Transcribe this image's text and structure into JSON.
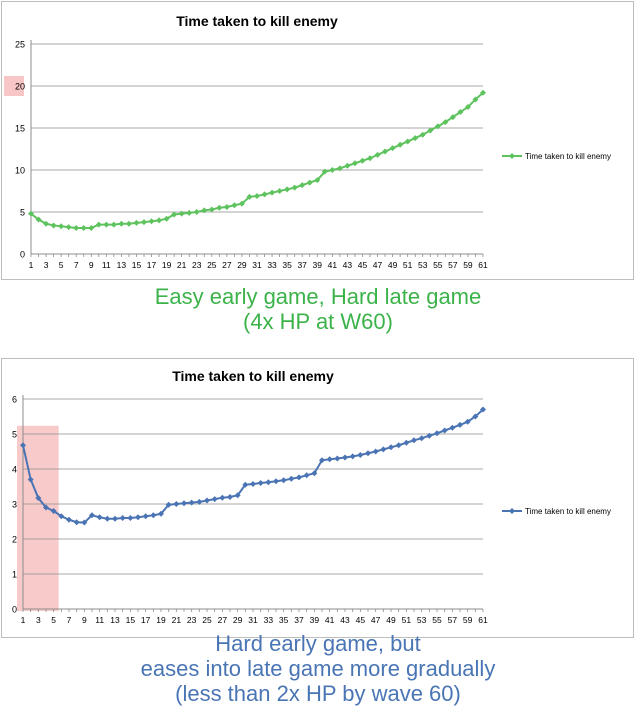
{
  "chart_data": [
    {
      "type": "line",
      "title": "Time taken to kill enemy",
      "xlabel": "",
      "ylabel": "",
      "ylim": [
        0,
        25
      ],
      "yticks": [
        "0",
        "5",
        "10",
        "15",
        "20",
        "25"
      ],
      "xticks": [
        "1",
        "3",
        "5",
        "7",
        "9",
        "11",
        "13",
        "15",
        "17",
        "19",
        "21",
        "23",
        "25",
        "27",
        "29",
        "31",
        "33",
        "35",
        "37",
        "39",
        "41",
        "43",
        "45",
        "47",
        "49",
        "51",
        "53",
        "55",
        "57",
        "59",
        "61"
      ],
      "grid": true,
      "legend_position": "right",
      "highlight_label": "20",
      "series": [
        {
          "name": "Time taken to kill enemy",
          "color": "#5ec35e",
          "x": [
            1,
            2,
            3,
            4,
            5,
            6,
            7,
            8,
            9,
            10,
            11,
            12,
            13,
            14,
            15,
            16,
            17,
            18,
            19,
            20,
            21,
            22,
            23,
            24,
            25,
            26,
            27,
            28,
            29,
            30,
            31,
            32,
            33,
            34,
            35,
            36,
            37,
            38,
            39,
            40,
            41,
            42,
            43,
            44,
            45,
            46,
            47,
            48,
            49,
            50,
            51,
            52,
            53,
            54,
            55,
            56,
            57,
            58,
            59,
            60,
            61
          ],
          "values": [
            4.8,
            4.1,
            3.6,
            3.4,
            3.3,
            3.2,
            3.1,
            3.1,
            3.1,
            3.5,
            3.5,
            3.5,
            3.6,
            3.6,
            3.7,
            3.8,
            3.9,
            4.0,
            4.2,
            4.7,
            4.8,
            4.9,
            5.0,
            5.2,
            5.3,
            5.5,
            5.6,
            5.8,
            6.0,
            6.8,
            6.9,
            7.1,
            7.3,
            7.5,
            7.7,
            7.9,
            8.2,
            8.5,
            8.8,
            9.8,
            10.0,
            10.2,
            10.5,
            10.8,
            11.1,
            11.4,
            11.8,
            12.2,
            12.6,
            13.0,
            13.4,
            13.8,
            14.2,
            14.7,
            15.2,
            15.7,
            16.3,
            16.9,
            17.5,
            18.4,
            19.2
          ]
        }
      ]
    },
    {
      "type": "line",
      "title": "Time taken to kill enemy",
      "xlabel": "",
      "ylabel": "",
      "ylim": [
        0,
        6
      ],
      "yticks": [
        "0",
        "1",
        "2",
        "3",
        "4",
        "5",
        "6"
      ],
      "xticks": [
        "1",
        "3",
        "5",
        "7",
        "9",
        "11",
        "13",
        "15",
        "17",
        "19",
        "21",
        "23",
        "25",
        "27",
        "29",
        "31",
        "33",
        "35",
        "37",
        "39",
        "41",
        "43",
        "45",
        "47",
        "49",
        "51",
        "53",
        "55",
        "57",
        "59",
        "61"
      ],
      "grid": true,
      "legend_position": "right",
      "highlight_range": [
        1,
        5
      ],
      "series": [
        {
          "name": "Time taken to kill enemy",
          "color": "#4a74b4",
          "x": [
            1,
            2,
            3,
            4,
            5,
            6,
            7,
            8,
            9,
            10,
            11,
            12,
            13,
            14,
            15,
            16,
            17,
            18,
            19,
            20,
            21,
            22,
            23,
            24,
            25,
            26,
            27,
            28,
            29,
            30,
            31,
            32,
            33,
            34,
            35,
            36,
            37,
            38,
            39,
            40,
            41,
            42,
            43,
            44,
            45,
            46,
            47,
            48,
            49,
            50,
            51,
            52,
            53,
            54,
            55,
            56,
            57,
            58,
            59,
            60,
            61
          ],
          "values": [
            4.68,
            3.7,
            3.17,
            2.9,
            2.8,
            2.65,
            2.55,
            2.48,
            2.47,
            2.68,
            2.62,
            2.58,
            2.58,
            2.6,
            2.6,
            2.62,
            2.65,
            2.68,
            2.72,
            2.98,
            3.0,
            3.02,
            3.04,
            3.06,
            3.1,
            3.14,
            3.18,
            3.2,
            3.25,
            3.55,
            3.57,
            3.6,
            3.62,
            3.65,
            3.68,
            3.72,
            3.76,
            3.82,
            3.88,
            4.25,
            4.28,
            4.3,
            4.33,
            4.36,
            4.4,
            4.45,
            4.5,
            4.56,
            4.62,
            4.68,
            4.75,
            4.82,
            4.88,
            4.95,
            5.02,
            5.1,
            5.18,
            5.26,
            5.35,
            5.5,
            5.7
          ]
        }
      ]
    }
  ],
  "captions": {
    "first": {
      "line1": "Easy early game, Hard late game",
      "line2": "(4x HP at W60)",
      "color": "#3cb34a"
    },
    "second": {
      "line1": "Hard early game, but",
      "line2": "eases into late game more gradually",
      "line3": "(less than 2x HP by wave 60)",
      "color": "#4a75b5"
    }
  }
}
